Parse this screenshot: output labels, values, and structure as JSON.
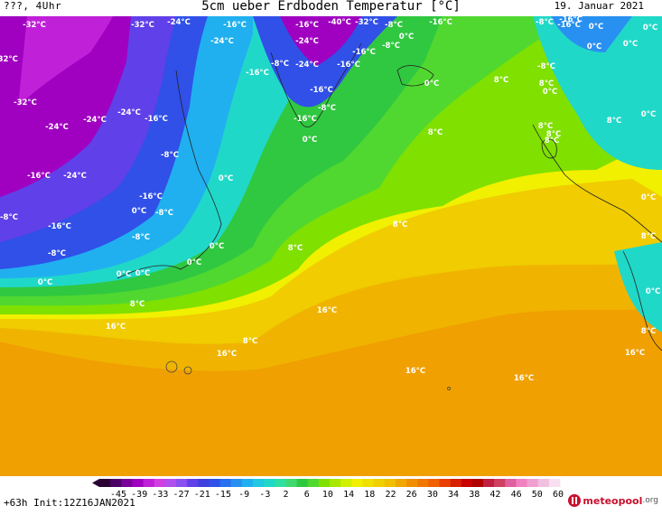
{
  "header": {
    "left": "???, 4Uhr",
    "title": "5cm ueber Erdboden Temperatur [°C]",
    "date": "19. Januar 2021"
  },
  "footer": {
    "run": "+63h Init:12Z16JAN2021",
    "logo_main": "meteopool",
    "logo_suffix": ".org"
  },
  "legend": {
    "ticks": [
      "-45",
      "-39",
      "-33",
      "-27",
      "-21",
      "-15",
      "-9",
      "-3",
      "2",
      "6",
      "10",
      "14",
      "18",
      "22",
      "26",
      "30",
      "34",
      "38",
      "42",
      "46",
      "50",
      "60"
    ],
    "colors": [
      "#2a0033",
      "#4b0066",
      "#7a0099",
      "#a000c0",
      "#c020d8",
      "#d040e0",
      "#b050ee",
      "#8a50f0",
      "#6040e8",
      "#4040e0",
      "#3050e8",
      "#2870ee",
      "#2890f0",
      "#20b0f0",
      "#20c8e0",
      "#20d8c8",
      "#30e0a0",
      "#40d870",
      "#30c840",
      "#50d830",
      "#80e000",
      "#a8e800",
      "#d0f000",
      "#f0f000",
      "#f0e000",
      "#f0d000",
      "#f0c000",
      "#f0a800",
      "#f09000",
      "#f07800",
      "#f06000",
      "#e84000",
      "#d82000",
      "#c80000",
      "#b00000",
      "#c02040",
      "#d04060",
      "#e060a0",
      "#f080c0",
      "#f0a0d0",
      "#f0c0e0",
      "#f8e0f0"
    ],
    "min_label": "-45",
    "max_label": "60"
  },
  "labels": [
    {
      "t": "-32°C"
    },
    {
      "t": "-32°C"
    },
    {
      "t": "-24°C"
    },
    {
      "t": "-16°C"
    },
    {
      "t": "-16°C"
    },
    {
      "t": "-40°C"
    },
    {
      "t": "-32°C"
    },
    {
      "t": "-8°C"
    },
    {
      "t": "-16°C"
    },
    {
      "t": "-32°C"
    },
    {
      "t": "-24°C"
    },
    {
      "t": "-24°C"
    },
    {
      "t": "-16°C"
    },
    {
      "t": "-8°C"
    },
    {
      "t": "0°C"
    },
    {
      "t": "0°C"
    },
    {
      "t": "-16°C"
    },
    {
      "t": "-8°C"
    },
    {
      "t": "-24°C"
    },
    {
      "t": "-16°C"
    },
    {
      "t": "-8°C"
    },
    {
      "t": "-16°C"
    },
    {
      "t": "0°C"
    },
    {
      "t": "0°C"
    },
    {
      "t": "-32°C"
    },
    {
      "t": "-24°C"
    },
    {
      "t": "-24°C"
    },
    {
      "t": "-24°C"
    },
    {
      "t": "-16°C"
    },
    {
      "t": "-16°C"
    },
    {
      "t": "-16°C"
    },
    {
      "t": "-8°C"
    },
    {
      "t": "0°C"
    },
    {
      "t": "8°C"
    },
    {
      "t": "8°C"
    },
    {
      "t": "0°C"
    },
    {
      "t": "0°C"
    },
    {
      "t": "8°C"
    },
    {
      "t": "8°C"
    },
    {
      "t": "0°C"
    },
    {
      "t": "8°C"
    },
    {
      "t": "-8°C"
    },
    {
      "t": "-16°C"
    },
    {
      "t": "-24°C"
    },
    {
      "t": "0°C"
    },
    {
      "t": "-16°C"
    },
    {
      "t": "-8°C"
    },
    {
      "t": "0°C"
    },
    {
      "t": "-8°C"
    },
    {
      "t": "-16°C"
    },
    {
      "t": "-8°C"
    },
    {
      "t": "-8°C"
    },
    {
      "t": "0°C"
    },
    {
      "t": "8°C"
    },
    {
      "t": "8°C"
    },
    {
      "t": "0°C"
    },
    {
      "t": "0°C"
    },
    {
      "t": "0°C"
    },
    {
      "t": "0°C"
    },
    {
      "t": "0°C"
    },
    {
      "t": "8°C"
    },
    {
      "t": "8°C"
    },
    {
      "t": "0°C"
    },
    {
      "t": "16°C"
    },
    {
      "t": "16°C"
    },
    {
      "t": "8°C"
    },
    {
      "t": "16°C"
    },
    {
      "t": "16°C"
    },
    {
      "t": "16°C"
    },
    {
      "t": "8°C"
    },
    {
      "t": "16°C"
    },
    {
      "t": "-8°C"
    },
    {
      "t": "-16°C"
    },
    {
      "t": "0°C"
    },
    {
      "t": "8°C"
    },
    {
      "t": "8°C"
    }
  ]
}
